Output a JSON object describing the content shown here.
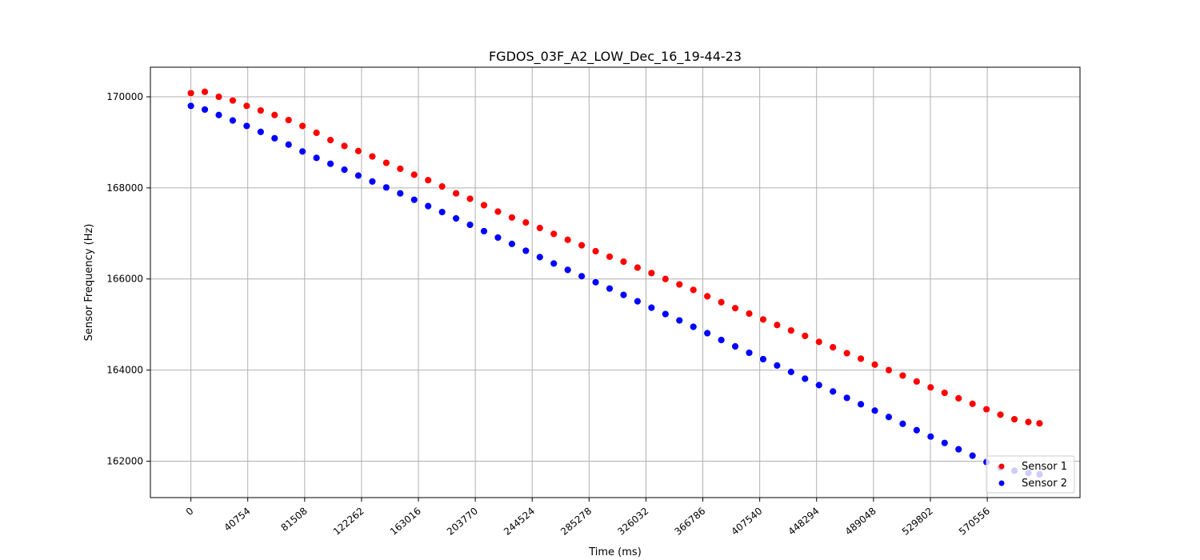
{
  "chart_data": {
    "type": "scatter",
    "title": "FGDOS_03F_A2_LOW_Dec_16_19-44-23",
    "xlabel": "Time (ms)",
    "ylabel": "Sensor Frequency (Hz)",
    "xlim": [
      -29000,
      637000
    ],
    "ylim": [
      161200,
      170650
    ],
    "xticks": [
      0,
      40754,
      81508,
      122262,
      163016,
      203770,
      244524,
      285278,
      326032,
      366786,
      407540,
      448294,
      489048,
      529802,
      570556
    ],
    "yticks": [
      162000,
      164000,
      166000,
      168000,
      170000
    ],
    "grid": true,
    "legend": "lower right",
    "series": [
      {
        "name": "Sensor 1",
        "color": "#ff0000",
        "x": [
          0,
          10000,
          20000,
          30000,
          40000,
          50000,
          60000,
          70000,
          80000,
          90000,
          100000,
          110000,
          120000,
          130000,
          140000,
          150000,
          160000,
          170000,
          180000,
          190000,
          200000,
          210000,
          220000,
          230000,
          240000,
          250000,
          260000,
          270000,
          280000,
          290000,
          300000,
          310000,
          320000,
          330000,
          340000,
          350000,
          360000,
          370000,
          380000,
          390000,
          400000,
          410000,
          420000,
          430000,
          440000,
          450000,
          460000,
          470000,
          480000,
          490000,
          500000,
          510000,
          520000,
          530000,
          540000,
          550000,
          560000,
          570000,
          580000,
          590000,
          600000,
          608000
        ],
        "y": [
          170080,
          170110,
          170000,
          169920,
          169800,
          169700,
          169600,
          169490,
          169360,
          169210,
          169050,
          168920,
          168810,
          168690,
          168550,
          168420,
          168290,
          168170,
          168030,
          167880,
          167760,
          167620,
          167480,
          167350,
          167240,
          167120,
          166990,
          166860,
          166740,
          166610,
          166490,
          166380,
          166250,
          166130,
          166000,
          165880,
          165760,
          165620,
          165490,
          165360,
          165240,
          165110,
          164990,
          164870,
          164750,
          164620,
          164500,
          164370,
          164250,
          164120,
          164000,
          163880,
          163750,
          163620,
          163500,
          163380,
          163260,
          163140,
          163020,
          162920,
          162860,
          162830
        ]
      },
      {
        "name": "Sensor 2",
        "color": "#0000ff",
        "x": [
          0,
          10000,
          20000,
          30000,
          40000,
          50000,
          60000,
          70000,
          80000,
          90000,
          100000,
          110000,
          120000,
          130000,
          140000,
          150000,
          160000,
          170000,
          180000,
          190000,
          200000,
          210000,
          220000,
          230000,
          240000,
          250000,
          260000,
          270000,
          280000,
          290000,
          300000,
          310000,
          320000,
          330000,
          340000,
          350000,
          360000,
          370000,
          380000,
          390000,
          400000,
          410000,
          420000,
          430000,
          440000,
          450000,
          460000,
          470000,
          480000,
          490000,
          500000,
          510000,
          520000,
          530000,
          540000,
          550000,
          560000,
          570000,
          580000,
          590000,
          600000,
          608000
        ],
        "y": [
          169800,
          169720,
          169600,
          169480,
          169360,
          169230,
          169090,
          168950,
          168800,
          168660,
          168530,
          168400,
          168270,
          168140,
          168010,
          167880,
          167740,
          167600,
          167470,
          167330,
          167190,
          167050,
          166910,
          166770,
          166620,
          166480,
          166340,
          166200,
          166060,
          165930,
          165790,
          165650,
          165510,
          165370,
          165230,
          165090,
          164950,
          164810,
          164660,
          164520,
          164380,
          164240,
          164100,
          163960,
          163810,
          163670,
          163530,
          163390,
          163250,
          163110,
          162970,
          162820,
          162680,
          162540,
          162400,
          162260,
          162120,
          161980,
          161860,
          161790,
          161740,
          161710
        ]
      }
    ]
  }
}
